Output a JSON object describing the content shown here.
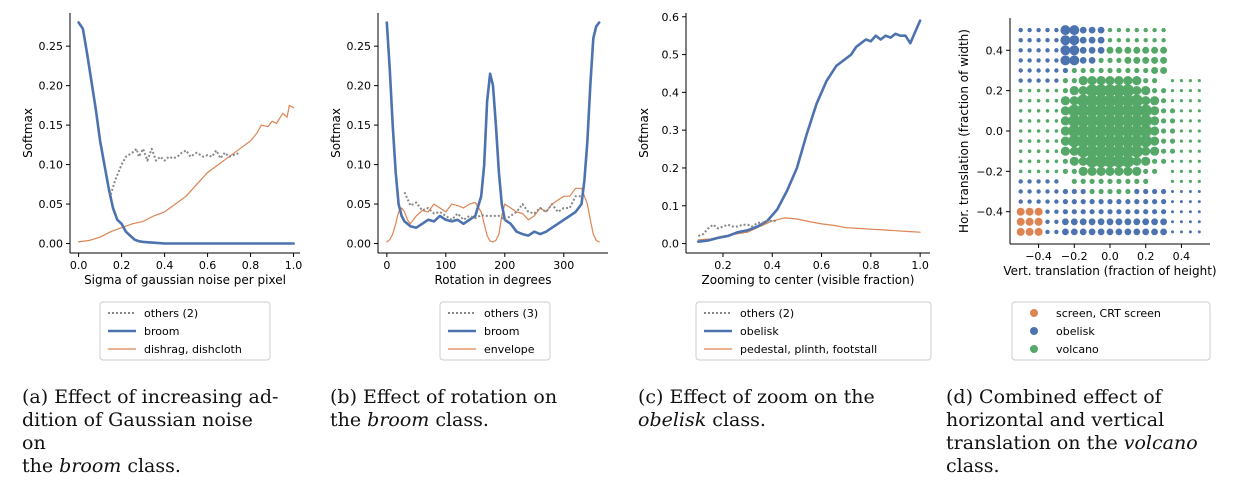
{
  "colors": {
    "others": "#888888",
    "blue": "#4c72b0",
    "orange": "#dd8452",
    "green": "#55a868",
    "axis": "#000000"
  },
  "chart_data": [
    {
      "type": "line",
      "title": "",
      "xlabel": "Sigma of gaussian noise per pixel",
      "ylabel": "Softmax",
      "xlim": [
        -0.04,
        1.03
      ],
      "ylim": [
        -0.012,
        0.292
      ],
      "xticks": [
        0.0,
        0.2,
        0.4,
        0.6,
        0.8,
        1.0
      ],
      "xtick_labels": [
        "0.0",
        "0.2",
        "0.4",
        "0.6",
        "0.8",
        "1.0"
      ],
      "yticks": [
        0.0,
        0.05,
        0.1,
        0.15,
        0.2,
        0.25
      ],
      "ytick_labels": [
        "0.00",
        "0.05",
        "0.10",
        "0.15",
        "0.20",
        "0.25"
      ],
      "legend": "below",
      "series": [
        {
          "name": "others (2)",
          "style": "dotted",
          "color": "#888888",
          "x": [
            0.15,
            0.17,
            0.2,
            0.22,
            0.25,
            0.27,
            0.28,
            0.3,
            0.32,
            0.34,
            0.36,
            0.38,
            0.4,
            0.42,
            0.44,
            0.46,
            0.48,
            0.5,
            0.52,
            0.55,
            0.58,
            0.6,
            0.62,
            0.64,
            0.66,
            0.68,
            0.7,
            0.72,
            0.75
          ],
          "y": [
            0.062,
            0.08,
            0.1,
            0.11,
            0.115,
            0.12,
            0.11,
            0.12,
            0.105,
            0.12,
            0.105,
            0.11,
            0.105,
            0.11,
            0.108,
            0.11,
            0.115,
            0.118,
            0.11,
            0.115,
            0.11,
            0.112,
            0.11,
            0.118,
            0.108,
            0.115,
            0.11,
            0.112,
            0.115
          ]
        },
        {
          "name": "broom",
          "style": "thick",
          "color": "#4c72b0",
          "x": [
            0.0,
            0.02,
            0.04,
            0.06,
            0.08,
            0.1,
            0.12,
            0.14,
            0.16,
            0.18,
            0.2,
            0.22,
            0.24,
            0.26,
            0.28,
            0.3,
            0.35,
            0.4,
            0.5,
            0.6,
            0.8,
            1.0
          ],
          "y": [
            0.28,
            0.272,
            0.24,
            0.205,
            0.17,
            0.13,
            0.1,
            0.07,
            0.045,
            0.03,
            0.025,
            0.015,
            0.01,
            0.005,
            0.003,
            0.002,
            0.001,
            0.0,
            0.0,
            0.0,
            0.0,
            0.0
          ]
        },
        {
          "name": "dishrag, dishcloth",
          "style": "thin",
          "color": "#dd8452",
          "x": [
            0.0,
            0.05,
            0.1,
            0.15,
            0.2,
            0.25,
            0.3,
            0.35,
            0.4,
            0.45,
            0.5,
            0.55,
            0.6,
            0.65,
            0.7,
            0.75,
            0.8,
            0.83,
            0.85,
            0.88,
            0.9,
            0.92,
            0.95,
            0.97,
            0.98,
            1.0
          ],
          "y": [
            0.002,
            0.004,
            0.008,
            0.015,
            0.02,
            0.025,
            0.028,
            0.035,
            0.04,
            0.05,
            0.06,
            0.075,
            0.09,
            0.1,
            0.11,
            0.12,
            0.13,
            0.14,
            0.15,
            0.148,
            0.155,
            0.152,
            0.165,
            0.16,
            0.175,
            0.172
          ]
        }
      ]
    },
    {
      "type": "line",
      "title": "",
      "xlabel": "Rotation in degrees",
      "ylabel": "Softmax",
      "xlim": [
        -15,
        375
      ],
      "ylim": [
        -0.012,
        0.292
      ],
      "xticks": [
        0,
        100,
        200,
        300
      ],
      "xtick_labels": [
        "0",
        "100",
        "200",
        "300"
      ],
      "yticks": [
        0.0,
        0.05,
        0.1,
        0.15,
        0.2,
        0.25
      ],
      "ytick_labels": [
        "0.00",
        "0.05",
        "0.10",
        "0.15",
        "0.20",
        "0.25"
      ],
      "legend": "below",
      "series": [
        {
          "name": "others (3)",
          "style": "dotted",
          "color": "#888888",
          "x": [
            30,
            40,
            50,
            60,
            70,
            80,
            90,
            100,
            110,
            120,
            130,
            140,
            150,
            160,
            170,
            190,
            200,
            210,
            220,
            230,
            240,
            250,
            260,
            270,
            280,
            290,
            300,
            310,
            320,
            330
          ],
          "y": [
            0.065,
            0.048,
            0.052,
            0.042,
            0.045,
            0.038,
            0.04,
            0.035,
            0.03,
            0.038,
            0.03,
            0.035,
            0.032,
            0.036,
            0.035,
            0.035,
            0.03,
            0.035,
            0.04,
            0.05,
            0.04,
            0.038,
            0.045,
            0.04,
            0.05,
            0.04,
            0.045,
            0.045,
            0.06,
            0.06
          ]
        },
        {
          "name": "broom",
          "style": "thick",
          "color": "#4c72b0",
          "x": [
            0,
            5,
            10,
            15,
            20,
            25,
            30,
            35,
            40,
            50,
            60,
            70,
            80,
            90,
            100,
            110,
            120,
            130,
            140,
            150,
            160,
            165,
            170,
            175,
            180,
            185,
            190,
            195,
            200,
            210,
            220,
            230,
            240,
            250,
            260,
            270,
            280,
            290,
            300,
            310,
            320,
            330,
            335,
            340,
            345,
            350,
            355,
            360
          ],
          "y": [
            0.28,
            0.22,
            0.15,
            0.09,
            0.05,
            0.035,
            0.028,
            0.025,
            0.022,
            0.02,
            0.025,
            0.03,
            0.028,
            0.035,
            0.03,
            0.028,
            0.03,
            0.025,
            0.03,
            0.035,
            0.06,
            0.1,
            0.18,
            0.215,
            0.2,
            0.15,
            0.09,
            0.05,
            0.03,
            0.025,
            0.015,
            0.012,
            0.01,
            0.015,
            0.012,
            0.015,
            0.02,
            0.025,
            0.03,
            0.035,
            0.04,
            0.05,
            0.08,
            0.13,
            0.2,
            0.26,
            0.275,
            0.28
          ]
        },
        {
          "name": "envelope",
          "style": "thin",
          "color": "#dd8452",
          "x": [
            0,
            5,
            10,
            15,
            20,
            25,
            30,
            35,
            40,
            50,
            60,
            70,
            80,
            90,
            100,
            110,
            120,
            130,
            140,
            150,
            160,
            165,
            170,
            175,
            180,
            185,
            190,
            195,
            200,
            210,
            220,
            230,
            240,
            250,
            260,
            270,
            280,
            290,
            300,
            310,
            320,
            330,
            340,
            345,
            350,
            355,
            360
          ],
          "y": [
            0.002,
            0.005,
            0.012,
            0.025,
            0.04,
            0.045,
            0.04,
            0.03,
            0.025,
            0.035,
            0.042,
            0.04,
            0.05,
            0.045,
            0.04,
            0.05,
            0.048,
            0.045,
            0.05,
            0.052,
            0.04,
            0.025,
            0.01,
            0.003,
            0.002,
            0.004,
            0.012,
            0.035,
            0.05,
            0.045,
            0.04,
            0.038,
            0.03,
            0.035,
            0.045,
            0.04,
            0.05,
            0.055,
            0.06,
            0.06,
            0.07,
            0.07,
            0.05,
            0.03,
            0.012,
            0.004,
            0.002
          ]
        }
      ]
    },
    {
      "type": "line",
      "title": "",
      "xlabel": "Zooming to center (visible fraction)",
      "ylabel": "Softmax",
      "xlim": [
        0.05,
        1.04
      ],
      "ylim": [
        -0.025,
        0.61
      ],
      "xticks": [
        0.2,
        0.4,
        0.6,
        0.8,
        1.0
      ],
      "xtick_labels": [
        "0.2",
        "0.4",
        "0.6",
        "0.8",
        "1.0"
      ],
      "yticks": [
        0.0,
        0.1,
        0.2,
        0.3,
        0.4,
        0.5,
        0.6
      ],
      "ytick_labels": [
        "0.0",
        "0.1",
        "0.2",
        "0.3",
        "0.4",
        "0.5",
        "0.6"
      ],
      "legend": "below",
      "series": [
        {
          "name": "others (2)",
          "style": "dotted",
          "color": "#888888",
          "x": [
            0.1,
            0.12,
            0.14,
            0.16,
            0.18,
            0.2,
            0.22,
            0.24,
            0.26,
            0.28,
            0.3,
            0.32,
            0.34,
            0.36,
            0.38,
            0.4,
            0.42
          ],
          "y": [
            0.02,
            0.025,
            0.04,
            0.05,
            0.04,
            0.045,
            0.05,
            0.045,
            0.045,
            0.05,
            0.05,
            0.045,
            0.055,
            0.055,
            0.06,
            0.06,
            0.06
          ]
        },
        {
          "name": "obelisk",
          "style": "thick",
          "color": "#4c72b0",
          "x": [
            0.1,
            0.14,
            0.18,
            0.22,
            0.26,
            0.3,
            0.34,
            0.38,
            0.42,
            0.46,
            0.5,
            0.54,
            0.58,
            0.62,
            0.66,
            0.7,
            0.72,
            0.74,
            0.76,
            0.78,
            0.8,
            0.82,
            0.84,
            0.86,
            0.88,
            0.9,
            0.92,
            0.94,
            0.96,
            0.98,
            1.0
          ],
          "y": [
            0.005,
            0.008,
            0.015,
            0.02,
            0.03,
            0.035,
            0.045,
            0.06,
            0.09,
            0.14,
            0.2,
            0.29,
            0.37,
            0.43,
            0.47,
            0.49,
            0.5,
            0.52,
            0.53,
            0.54,
            0.535,
            0.55,
            0.54,
            0.55,
            0.545,
            0.555,
            0.55,
            0.55,
            0.53,
            0.56,
            0.59
          ]
        },
        {
          "name": "pedestal, plinth, footstall",
          "style": "thin",
          "color": "#dd8452",
          "x": [
            0.1,
            0.15,
            0.2,
            0.25,
            0.3,
            0.35,
            0.4,
            0.45,
            0.5,
            0.55,
            0.6,
            0.65,
            0.7,
            0.75,
            0.8,
            0.85,
            0.9,
            0.95,
            1.0
          ],
          "y": [
            0.01,
            0.012,
            0.02,
            0.025,
            0.03,
            0.045,
            0.06,
            0.068,
            0.065,
            0.058,
            0.052,
            0.048,
            0.042,
            0.04,
            0.038,
            0.036,
            0.034,
            0.032,
            0.03
          ]
        }
      ]
    },
    {
      "type": "scatter",
      "title": "",
      "xlabel": "Vert. translation (fraction of height)",
      "ylabel": "Hor. translation (fraction of width)",
      "xlim": [
        -0.56,
        0.56
      ],
      "ylim": [
        -0.56,
        0.56
      ],
      "xticks": [
        -0.4,
        -0.2,
        0.0,
        0.2,
        0.4
      ],
      "xtick_labels": [
        "−0.4",
        "−0.2",
        "0.0",
        "0.2",
        "0.4"
      ],
      "yticks": [
        -0.4,
        -0.2,
        0.0,
        0.2,
        0.4
      ],
      "ytick_labels": [
        "−0.4",
        "−0.2",
        "0.0",
        "0.2",
        "0.4"
      ],
      "grid_step": 0.05,
      "legend": "below",
      "series": [
        {
          "name": "screen, CRT screen",
          "color": "#dd8452"
        },
        {
          "name": "obelisk",
          "color": "#4c72b0"
        },
        {
          "name": "volcano",
          "color": "#55a868"
        }
      ]
    }
  ],
  "captions": [
    {
      "lines": [
        [
          "(a) Effect of increasing ad-"
        ],
        [
          "dition of Gaussian noise on"
        ],
        [
          "the ",
          {
            "i": "broom"
          },
          " class."
        ]
      ]
    },
    {
      "lines": [
        [
          "(b) Effect of rotation on"
        ],
        [
          "the ",
          {
            "i": "broom"
          },
          " class."
        ]
      ]
    },
    {
      "lines": [
        [
          "(c) Effect of zoom on the"
        ],
        [
          {
            "i": "obelisk"
          },
          " class."
        ]
      ]
    },
    {
      "lines": [
        [
          "(d) Combined effect of"
        ],
        [
          "horizontal and vertical"
        ],
        [
          "translation on the ",
          {
            "i": "volcano"
          }
        ],
        [
          "class."
        ]
      ]
    }
  ]
}
